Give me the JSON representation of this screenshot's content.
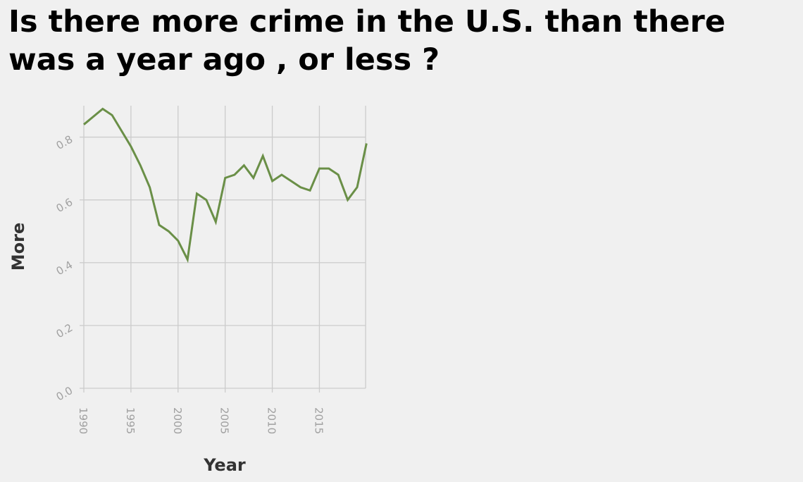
{
  "chart_data": {
    "type": "line",
    "title": "Is there more crime in the U.S. than there was a year ago , or less ?",
    "xlabel": "Year",
    "ylabel": "More",
    "xlim": [
      1990,
      2019.9
    ],
    "ylim": [
      0,
      0.9
    ],
    "xticks": [
      1990,
      1995,
      2000,
      2005,
      2010,
      2015
    ],
    "yticks": [
      0.0,
      0.2,
      0.4,
      0.6,
      0.8
    ],
    "ytick_labels": [
      "0.0",
      "0.2",
      "0.4",
      "0.6",
      "0.8"
    ],
    "grid": true,
    "line_color": "#6a8f47",
    "series": [
      {
        "x": [
          1990,
          1992,
          1993,
          1994,
          1995,
          1996,
          1997,
          1998,
          1999,
          2000,
          2001,
          2002,
          2003,
          2004,
          2005,
          2006,
          2007,
          2008,
          2009,
          2010,
          2011,
          2012,
          2013,
          2014,
          2015,
          2016,
          2017,
          2018,
          2019,
          2020
        ],
        "y": [
          0.84,
          0.89,
          0.87,
          0.82,
          0.77,
          0.71,
          0.64,
          0.52,
          0.5,
          0.47,
          0.41,
          0.62,
          0.6,
          0.53,
          0.67,
          0.68,
          0.71,
          0.67,
          0.74,
          0.66,
          0.68,
          0.66,
          0.64,
          0.63,
          0.7,
          0.7,
          0.68,
          0.6,
          0.64,
          0.78
        ]
      }
    ]
  }
}
